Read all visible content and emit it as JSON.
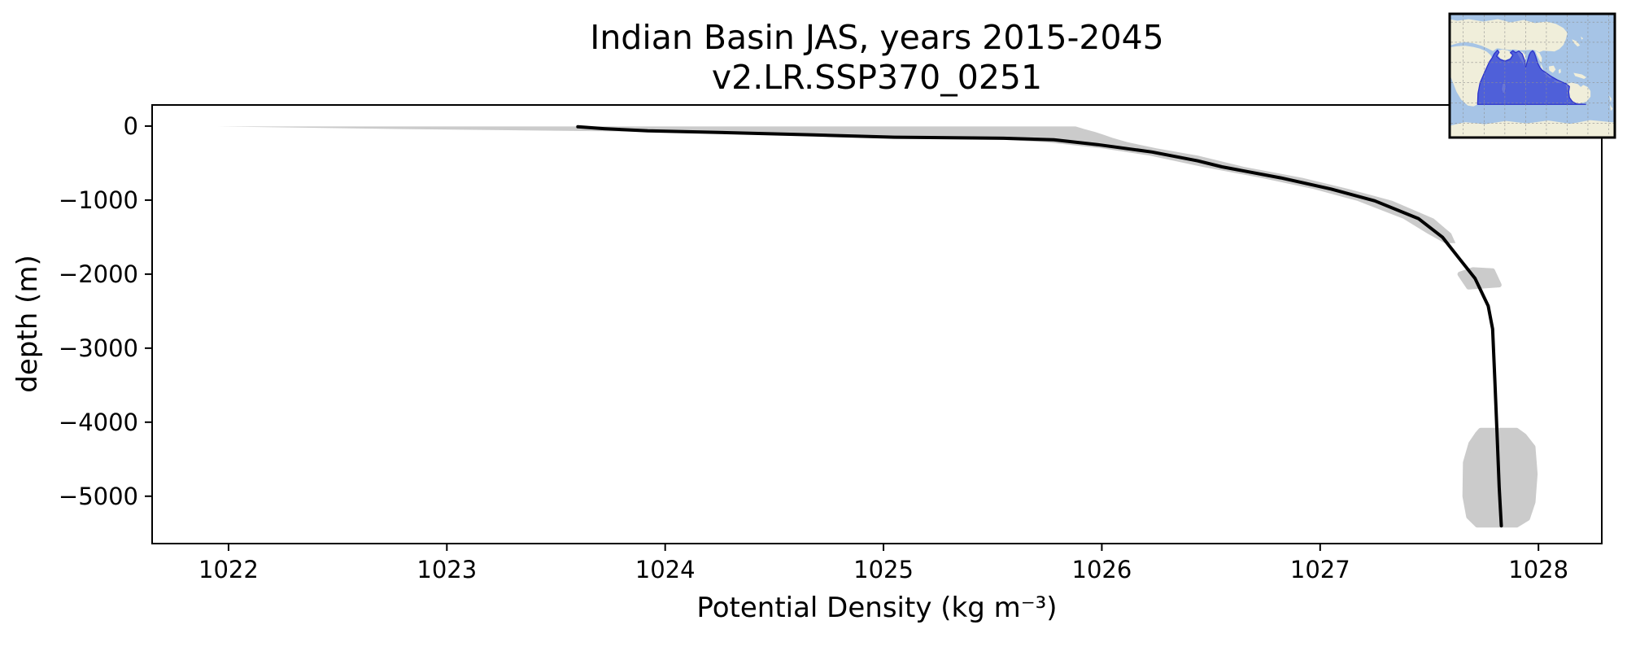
{
  "figure": {
    "background": "#ffffff"
  },
  "chart_data": {
    "type": "line",
    "title": "Indian Basin JAS, years 2015-2045",
    "subtitle": "v2.LR.SSP370_0251",
    "xlabel": "Potential Density (kg m⁻³)",
    "ylabel": "depth (m)",
    "xlim": [
      1021.65,
      1028.29
    ],
    "ylim": [
      -5640,
      285
    ],
    "xticks": [
      1022,
      1023,
      1024,
      1025,
      1026,
      1027,
      1028
    ],
    "xtick_labels": [
      "1022",
      "1023",
      "1024",
      "1025",
      "1026",
      "1027",
      "1028"
    ],
    "yticks": [
      0,
      -1000,
      -2000,
      -3000,
      -4000,
      -5000
    ],
    "ytick_labels": [
      "0",
      "−1000",
      "−2000",
      "−3000",
      "−4000",
      "−5000"
    ],
    "grid": false,
    "legend": null,
    "line_color": "#000000",
    "line_width": 4,
    "band_color": "#cbcbcb",
    "series": [
      {
        "name": "mean potential density profile",
        "points_density_depth": [
          [
            1023.6,
            -10
          ],
          [
            1023.72,
            -35
          ],
          [
            1023.92,
            -65
          ],
          [
            1024.3,
            -90
          ],
          [
            1024.68,
            -120
          ],
          [
            1025.05,
            -150
          ],
          [
            1025.55,
            -165
          ],
          [
            1025.78,
            -185
          ],
          [
            1025.98,
            -250
          ],
          [
            1026.23,
            -350
          ],
          [
            1026.44,
            -470
          ],
          [
            1026.55,
            -550
          ],
          [
            1026.82,
            -700
          ],
          [
            1027.05,
            -850
          ],
          [
            1027.25,
            -1010
          ],
          [
            1027.45,
            -1250
          ],
          [
            1027.56,
            -1500
          ],
          [
            1027.64,
            -1800
          ],
          [
            1027.71,
            -2060
          ],
          [
            1027.77,
            -2430
          ],
          [
            1027.79,
            -2740
          ],
          [
            1027.8,
            -3420
          ],
          [
            1027.81,
            -4140
          ],
          [
            1027.82,
            -4880
          ],
          [
            1027.83,
            -5400
          ]
        ]
      }
    ],
    "band": {
      "name": "inter-annual spread envelope",
      "points_depth_lo_hi": [
        [
          -5,
          1021.95,
          1025.88
        ],
        [
          -40,
          1022.8,
          1025.92
        ],
        [
          -80,
          1024.05,
          1025.97
        ],
        [
          -120,
          1024.8,
          1026.01
        ],
        [
          -160,
          1025.4,
          1026.05
        ],
        [
          -220,
          1025.75,
          1026.12
        ],
        [
          -300,
          1026.0,
          1026.25
        ],
        [
          -400,
          1026.22,
          1026.44
        ],
        [
          -550,
          1026.46,
          1026.65
        ],
        [
          -700,
          1026.73,
          1026.92
        ],
        [
          -850,
          1026.97,
          1027.13
        ],
        [
          -1010,
          1027.17,
          1027.33
        ],
        [
          -1250,
          1027.38,
          1027.52
        ],
        [
          -1450,
          1027.49,
          1027.6
        ],
        [
          -1580,
          1027.57,
          1027.62
        ]
      ]
    },
    "detached_patches": [
      {
        "name": "spread patch near -2000 m",
        "points_density_depth": [
          [
            1027.7,
            -1940
          ],
          [
            1027.79,
            -1955
          ],
          [
            1027.82,
            -2145
          ],
          [
            1027.68,
            -2175
          ],
          [
            1027.64,
            -2000
          ]
        ]
      },
      {
        "name": "spread patch near bottom",
        "points_density_depth": [
          [
            1027.735,
            -4110
          ],
          [
            1027.9,
            -4110
          ],
          [
            1027.935,
            -4185
          ],
          [
            1027.975,
            -4335
          ],
          [
            1027.985,
            -4700
          ],
          [
            1027.975,
            -5080
          ],
          [
            1027.95,
            -5300
          ],
          [
            1027.9,
            -5390
          ],
          [
            1027.72,
            -5390
          ],
          [
            1027.68,
            -5275
          ],
          [
            1027.663,
            -5000
          ],
          [
            1027.665,
            -4545
          ],
          [
            1027.69,
            -4290
          ],
          [
            1027.72,
            -4160
          ]
        ]
      }
    ],
    "inset_map": {
      "name": "Indian Ocean basin locator map",
      "ocean_color": "#a6c4e6",
      "land_color": "#f0eeda",
      "basin_fill": "#4e5ed8",
      "basin_edge": "#2c33cc",
      "grid_color": "#8f8f8f",
      "border_color": "#000000"
    }
  }
}
